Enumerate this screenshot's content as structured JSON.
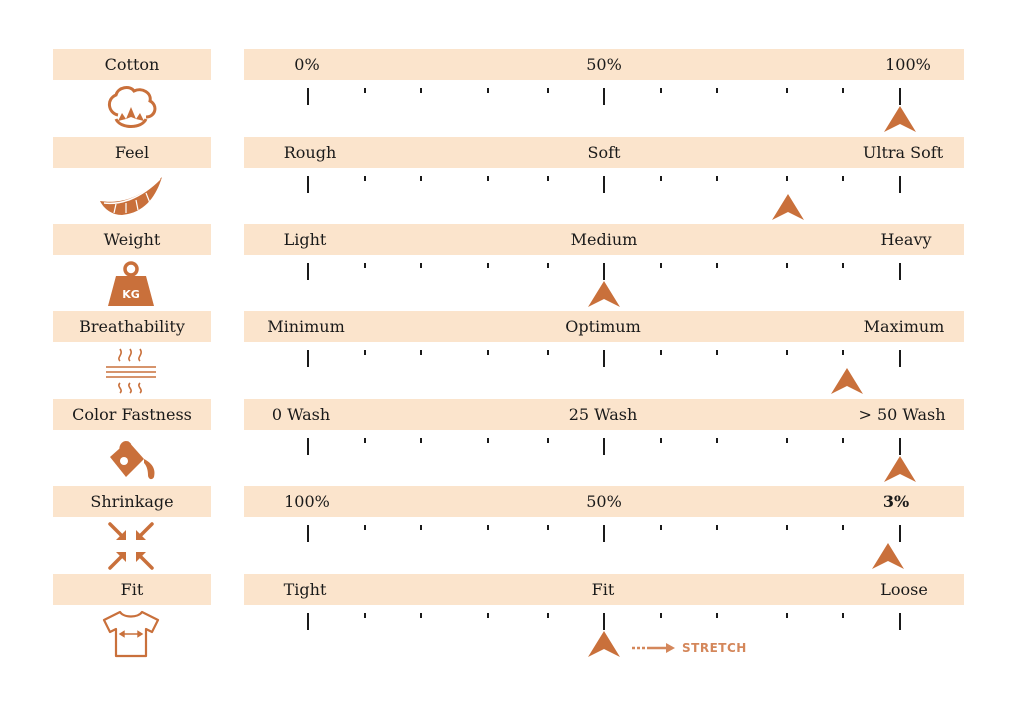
{
  "accent_color": "#c9703b",
  "band_color": "#fbe4cc",
  "extra": {
    "stretch_label": "STRETCH"
  },
  "rows": [
    {
      "label": "Cotton",
      "icon": "cotton-boll-icon",
      "left": "0%",
      "mid": "50%",
      "right": "100%",
      "level": 1.0
    },
    {
      "label": "Feel",
      "icon": "feather-icon",
      "left": "Rough",
      "mid": "Soft",
      "right": "Ultra Soft",
      "level": 0.81
    },
    {
      "label": "Weight",
      "icon": "kg-weight-icon",
      "left": "Light",
      "mid": "Medium",
      "right": "Heavy",
      "level": 0.5
    },
    {
      "label": "Breathability",
      "icon": "breathable-fabric-icon",
      "left": "Minimum",
      "mid": "Optimum",
      "right": "Maximum",
      "level": 0.91
    },
    {
      "label": "Color Fastness",
      "icon": "paint-bucket-icon",
      "left": "0 Wash",
      "mid": "25 Wash",
      "right": "> 50 Wash",
      "level": 1.0
    },
    {
      "label": "Shrinkage",
      "icon": "shrink-arrows-icon",
      "left": "100%",
      "mid": "50%",
      "right": "3%",
      "level": 0.98
    },
    {
      "label": "Fit",
      "icon": "tshirt-icon",
      "left": "Tight",
      "mid": "Fit",
      "right": "Loose",
      "level": 0.5
    }
  ]
}
